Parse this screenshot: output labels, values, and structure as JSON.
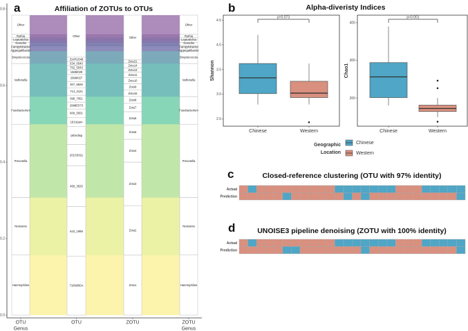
{
  "chart_data": [
    {
      "type": "alluvial",
      "panel": "a",
      "title": "Affiliation of ZOTUs to OTUs",
      "axes": [
        "OTU\nGenus",
        "OTU",
        "ZOTU",
        "ZOTU\nGenus"
      ],
      "axis_labels": [
        [
          "OTU",
          "Genus"
        ],
        [
          "OTU"
        ],
        [
          "ZOTU"
        ],
        [
          "ZOTU",
          "Genus"
        ]
      ],
      "y_ticks": [
        "0.0",
        "0.2",
        "0.4",
        "0.6",
        "0.8"
      ],
      "genus": [
        {
          "name": "Other",
          "fraction": 0.064,
          "color": "#8a5a9e"
        },
        {
          "name": "Rothia",
          "fraction": 0.011,
          "color": "#6f3f8c"
        },
        {
          "name": "Leptotrichia",
          "fraction": 0.007,
          "color": "#5d3a86"
        },
        {
          "name": "Gemella",
          "fraction": 0.009,
          "color": "#563c8a"
        },
        {
          "name": "Campylobacter",
          "fraction": 0.011,
          "color": "#4b4d8f"
        },
        {
          "name": "Aggregatibacter",
          "fraction": 0.018,
          "color": "#5d5a9c"
        },
        {
          "name": "Streptococcus",
          "fraction": 0.041,
          "color": "#45869c"
        },
        {
          "name": "Veillonella",
          "fraction": 0.11,
          "color": "#3aa3a0"
        },
        {
          "name": "Fusobacterium",
          "fraction": 0.092,
          "color": "#55c49a"
        },
        {
          "name": "Prevotella",
          "fraction": 0.244,
          "color": "#a6dc84"
        },
        {
          "name": "Neisseria",
          "fraction": 0.191,
          "color": "#e2ec80"
        },
        {
          "name": "Haemophilus",
          "fraction": 0.2,
          "color": "#fbef8a"
        }
      ],
      "otu": [
        {
          "name": "Other",
          "fraction": 0.14
        },
        {
          "name": "314FU048",
          "fraction": 0.014
        },
        {
          "name": "534_0540",
          "fraction": 0.014
        },
        {
          "name": "762_5043",
          "fraction": 0.014
        },
        {
          "name": "1588I029",
          "fraction": 0.016
        },
        {
          "name": "2998I027",
          "fraction": 0.023
        },
        {
          "name": "307_6826",
          "fraction": 0.021
        },
        {
          "name": "714_3121",
          "fraction": 0.025
        },
        {
          "name": "398_7051",
          "fraction": 0.023
        },
        {
          "name": "2988E073",
          "fraction": 0.023
        },
        {
          "name": "609_5501",
          "fraction": 0.028
        },
        {
          "name": "161Vparv",
          "fraction": 0.03
        },
        {
          "name": "160Vdisp",
          "fraction": 0.06
        },
        {
          "name": "201SS011",
          "fraction": 0.071
        },
        {
          "name": "469_3525",
          "fraction": 0.136
        },
        {
          "name": "610_1998",
          "fraction": 0.165
        },
        {
          "name": "718N000A",
          "fraction": 0.197
        }
      ],
      "zotu": [
        {
          "name": "Other",
          "fraction": 0.149
        },
        {
          "name": "Zotu21",
          "fraction": 0.011
        },
        {
          "name": "Zotu14",
          "fraction": 0.016
        },
        {
          "name": "Zotu13",
          "fraction": 0.014
        },
        {
          "name": "Zotu11",
          "fraction": 0.018
        },
        {
          "name": "Zotu10",
          "fraction": 0.021
        },
        {
          "name": "Zotu9",
          "fraction": 0.021
        },
        {
          "name": "Zotu15",
          "fraction": 0.021
        },
        {
          "name": "Zotu8",
          "fraction": 0.023
        },
        {
          "name": "Zotu7",
          "fraction": 0.028
        },
        {
          "name": "Zotu6",
          "fraction": 0.044
        },
        {
          "name": "Zotu5",
          "fraction": 0.048
        },
        {
          "name": "Zotu4",
          "fraction": 0.076
        },
        {
          "name": "Zotu3",
          "fraction": 0.145
        },
        {
          "name": "Zotu2",
          "fraction": 0.165
        },
        {
          "name": "Zotu1",
          "fraction": 0.2
        }
      ]
    },
    {
      "type": "boxplot",
      "panel": "b",
      "title": "Alpha-diveristy Indices",
      "plots": [
        {
          "ylabel": "Shannon",
          "ylim": [
            2.35,
            4.6
          ],
          "yticks": [
            "2.5",
            "3.0",
            "3.5",
            "4.0",
            "4.5"
          ],
          "ytick_values": [
            2.5,
            3.0,
            3.5,
            4.0,
            4.5
          ],
          "pvalue": "p=0.073",
          "groups": [
            {
              "name": "Chinese",
              "min": 2.79,
              "q1": 3.01,
              "median": 3.33,
              "q3": 3.62,
              "max": 4.2,
              "outliers": []
            },
            {
              "name": "Western",
              "min": 2.79,
              "q1": 2.93,
              "median": 3.02,
              "q3": 3.26,
              "max": 3.62,
              "outliers": [
                2.43
              ]
            }
          ]
        },
        {
          "ylabel": "Chao1",
          "ylim": [
            125,
            420
          ],
          "yticks": [
            "200",
            "300",
            "400"
          ],
          "ytick_values": [
            200,
            300,
            400
          ],
          "pvalue": "p<0.001",
          "groups": [
            {
              "name": "Chinese",
              "min": 180,
              "q1": 201,
              "median": 256,
              "q3": 294,
              "max": 390,
              "outliers": []
            },
            {
              "name": "Western",
              "min": 149,
              "q1": 164,
              "median": 172,
              "q3": 181,
              "max": 200,
              "outliers": [
                246,
                226,
                137
              ]
            }
          ]
        }
      ],
      "legend": {
        "title": [
          "Geographic",
          "Location"
        ],
        "entries": [
          {
            "name": "Chinese",
            "color": "#4fa6c6"
          },
          {
            "name": "Western",
            "color": "#d9907f"
          }
        ]
      }
    },
    {
      "type": "heatmap",
      "panel": "c",
      "title": "Closed-reference clustering (OTU with 97% identity)",
      "rows": [
        "Actual",
        "Prediction"
      ],
      "legend_map": {
        "C": "Chinese",
        "W": "Western"
      },
      "values": [
        "WCWWWWWWWWWCCCCCCCWWWCCCCC",
        "WWWWWCWWWWWWCWCWWWWWWWWWWC"
      ]
    },
    {
      "type": "heatmap",
      "panel": "d",
      "title": "UNOISE3 pipeline denoising (ZOTU with 100% identity)",
      "rows": [
        "Actual",
        "Prediction"
      ],
      "legend_map": {
        "C": "Chinese",
        "W": "Western"
      },
      "values": [
        "WCWWWWWWWWWCCCCCCCWWWCCCCC",
        "WWWWWCCWWWWWWWCWWWWWWWWWWC"
      ]
    }
  ],
  "colors": {
    "chinese": "#4fa6c6",
    "western": "#d9907f"
  }
}
